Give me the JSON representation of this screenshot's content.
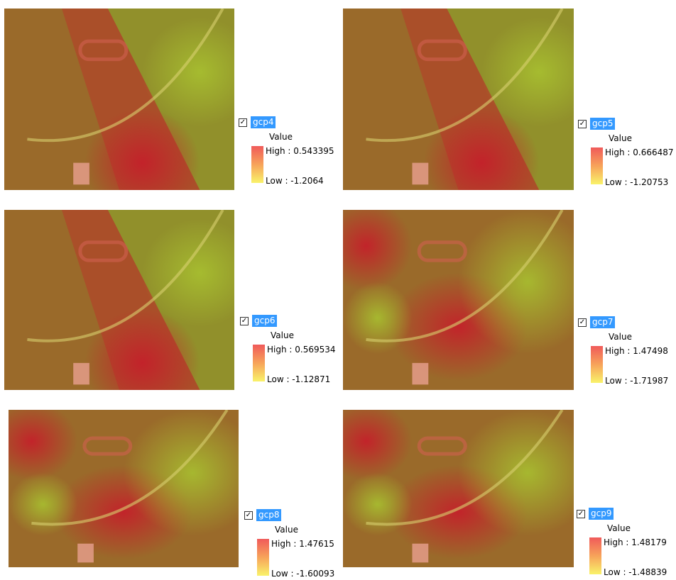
{
  "panels": [
    {
      "layer": "gcp4",
      "field": "Value",
      "high": "High : 0.543395",
      "low": "Low : -1.2064"
    },
    {
      "layer": "gcp5",
      "field": "Value",
      "high": "High : 0.666487",
      "low": "Low : -1.20753"
    },
    {
      "layer": "gcp6",
      "field": "Value",
      "high": "High : 0.569534",
      "low": "Low : -1.12871"
    },
    {
      "layer": "gcp7",
      "field": "Value",
      "high": "High : 1.47498",
      "low": "Low : -1.71987"
    },
    {
      "layer": "gcp8",
      "field": "Value",
      "high": "High : 1.47615",
      "low": "Low : -1.60093"
    },
    {
      "layer": "gcp9",
      "field": "Value",
      "high": "High : 1.48179",
      "low": "Low : -1.48839"
    }
  ]
}
